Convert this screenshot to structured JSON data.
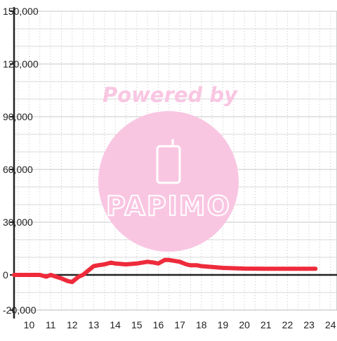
{
  "watermark": {
    "line1": "Powered by",
    "brand": "PAPIMO",
    "color": "#f9c6e2"
  },
  "chart_data": {
    "type": "line",
    "title": "",
    "xlabel": "",
    "ylabel": "",
    "xlim": [
      9.3,
      24.3
    ],
    "ylim": [
      -20000,
      150000
    ],
    "y_ticks": [
      -20000,
      0,
      30000,
      60000,
      90000,
      120000,
      150000
    ],
    "y_tick_labels": [
      "-20,000",
      "0",
      "30,000",
      "60,000",
      "90,000",
      "120,000",
      "150,000"
    ],
    "x_ticks": [
      10,
      11,
      12,
      13,
      14,
      15,
      16,
      17,
      18,
      19,
      20,
      21,
      22,
      23,
      24
    ],
    "x_tick_labels": [
      "10",
      "11",
      "12",
      "13",
      "14",
      "15",
      "16",
      "17",
      "18",
      "19",
      "20",
      "21",
      "22",
      "23",
      "24"
    ],
    "grid": true,
    "legend": "none",
    "series": [
      {
        "color": "#ee2b3b",
        "x": [
          9.3,
          10.0,
          10.5,
          10.8,
          11.0,
          11.5,
          11.8,
          12.0,
          12.3,
          12.5,
          12.8,
          13.0,
          13.2,
          13.5,
          13.8,
          14.0,
          14.5,
          15.0,
          15.5,
          15.8,
          16.0,
          16.3,
          16.5,
          17.0,
          17.3,
          17.5,
          17.8,
          18.0,
          18.5,
          19.0,
          19.5,
          20.0,
          21.0,
          22.0,
          23.0,
          23.3
        ],
        "y": [
          0,
          0,
          0,
          -1000,
          0,
          -2000,
          -3500,
          -4000,
          -1000,
          0,
          3000,
          5000,
          5500,
          6000,
          7000,
          6500,
          6000,
          6500,
          7500,
          7000,
          6500,
          8500,
          8500,
          7500,
          6000,
          5500,
          5500,
          5000,
          4500,
          4000,
          3800,
          3600,
          3500,
          3500,
          3500,
          3500
        ]
      }
    ]
  }
}
